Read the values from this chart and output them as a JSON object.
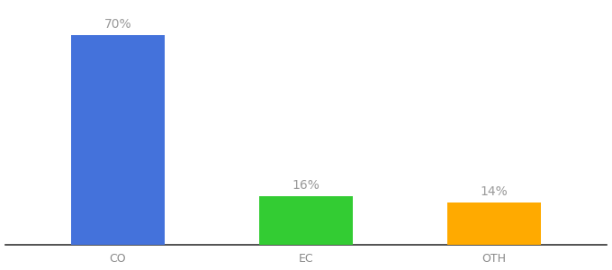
{
  "categories": [
    "CO",
    "EC",
    "OTH"
  ],
  "values": [
    70,
    16,
    14
  ],
  "bar_colors": [
    "#4472db",
    "#33cc33",
    "#ffaa00"
  ],
  "labels": [
    "70%",
    "16%",
    "14%"
  ],
  "background_color": "#ffffff",
  "label_color": "#999999",
  "label_fontsize": 10,
  "tick_fontsize": 9,
  "tick_color": "#888888",
  "ylim": [
    0,
    80
  ],
  "bar_width": 0.5,
  "x_positions": [
    0,
    1,
    2
  ],
  "xlim": [
    -0.6,
    2.6
  ]
}
